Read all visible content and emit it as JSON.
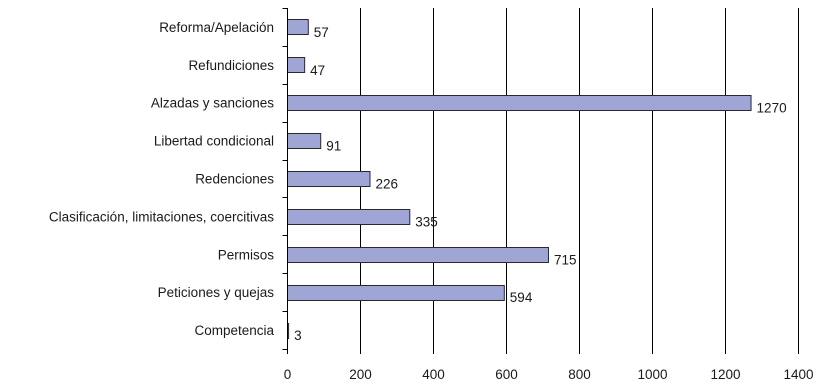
{
  "chart_data": {
    "type": "bar",
    "orientation": "horizontal",
    "categories": [
      "Reforma/Apelación",
      "Refundiciones",
      "Alzadas y sanciones",
      "Libertad condicional",
      "Redenciones",
      "Clasificación, limitaciones, coercitivas",
      "Permisos",
      "Peticiones y quejas",
      "Competencia"
    ],
    "values": [
      57,
      47,
      1270,
      91,
      226,
      335,
      715,
      594,
      3
    ],
    "value_labels": [
      "57",
      "47",
      "1270",
      "91",
      "226",
      "335",
      "715",
      "594",
      "3"
    ],
    "x_ticks": [
      "0",
      "200",
      "400",
      "600",
      "800",
      "1000",
      "1200",
      "1400"
    ],
    "xlim": [
      0,
      1400
    ],
    "title": "",
    "xlabel": "",
    "ylabel": "",
    "grid": "vertical",
    "legend": "none",
    "bar_color": "#9fa5d5",
    "bar_edge_color": "#2a2a2a"
  }
}
